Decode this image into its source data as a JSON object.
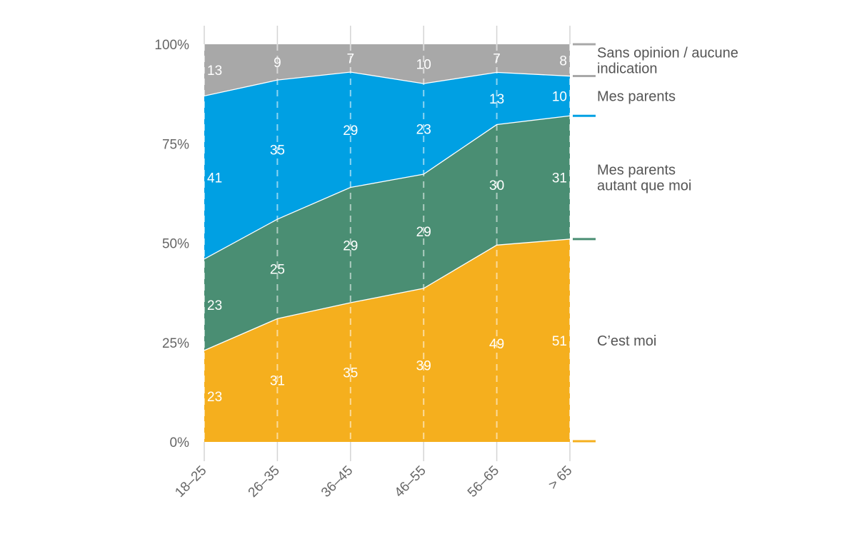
{
  "chart_data": {
    "type": "area",
    "stacked": true,
    "normalized": true,
    "categories": [
      "18–25",
      "26–35",
      "36–45",
      "46–55",
      "56–65",
      "> 65"
    ],
    "ylim": [
      0,
      100
    ],
    "yticks": [
      "0%",
      "25%",
      "50%",
      "75%",
      "100%"
    ],
    "grid": "vertical dashed lines at categories",
    "legend_position": "right",
    "series": [
      {
        "name": "C’est moi",
        "color": "#F5AF1E",
        "values": [
          23,
          31,
          35,
          39,
          49,
          51
        ]
      },
      {
        "name": "Mes parents autant que moi",
        "color": "#4A8E73",
        "values": [
          23,
          25,
          29,
          29,
          30,
          31
        ]
      },
      {
        "name": "Mes parents",
        "color": "#00A0E3",
        "values": [
          41,
          35,
          29,
          23,
          13,
          10
        ]
      },
      {
        "name": "Sans opinion / aucune indication",
        "color": "#A8A8A8",
        "values": [
          13,
          9,
          7,
          10,
          7,
          8
        ]
      }
    ],
    "legend_lines": [
      [
        "C’est moi"
      ],
      [
        "Mes parents",
        "autant que moi"
      ],
      [
        "Mes parents"
      ],
      [
        "Sans opinion / aucune",
        "indication"
      ]
    ]
  }
}
